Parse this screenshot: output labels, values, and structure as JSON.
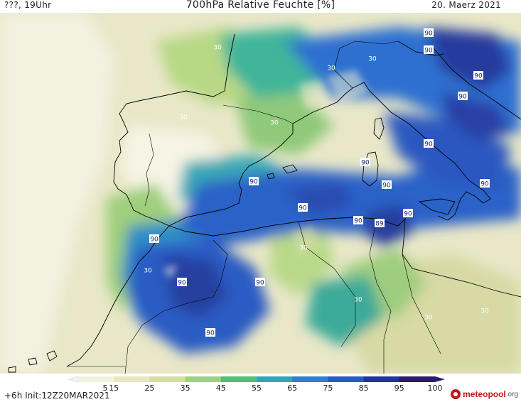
{
  "header": {
    "left": "???, 19Uhr",
    "title": "700hPa Relative Feuchte [%]",
    "date": "20. Maerz 2021"
  },
  "footer": {
    "run": "+6h  Init:12Z20MAR2021",
    "brand": "meteopool",
    "brand_suffix": ".org"
  },
  "legend": {
    "ticks": [
      "5",
      "15",
      "25",
      "35",
      "45",
      "55",
      "65",
      "75",
      "85",
      "95",
      "100"
    ],
    "colors": [
      "#ffffff",
      "#f2f2dc",
      "#e7e7c2",
      "#d6dca2",
      "#9ed27a",
      "#4fbf78",
      "#2fa7b8",
      "#2f7fd2",
      "#2a57c4",
      "#23339e",
      "#2a1a6f"
    ]
  },
  "contour_labels": {
    "values": [
      "90",
      "90",
      "90",
      "90",
      "90",
      "90",
      "90",
      "90",
      "90",
      "90",
      "90",
      "90",
      "90",
      "90",
      "90",
      "90",
      "89",
      "30",
      "30",
      "30",
      "30",
      "30",
      "30",
      "30",
      "30",
      "30",
      "30"
    ]
  }
}
